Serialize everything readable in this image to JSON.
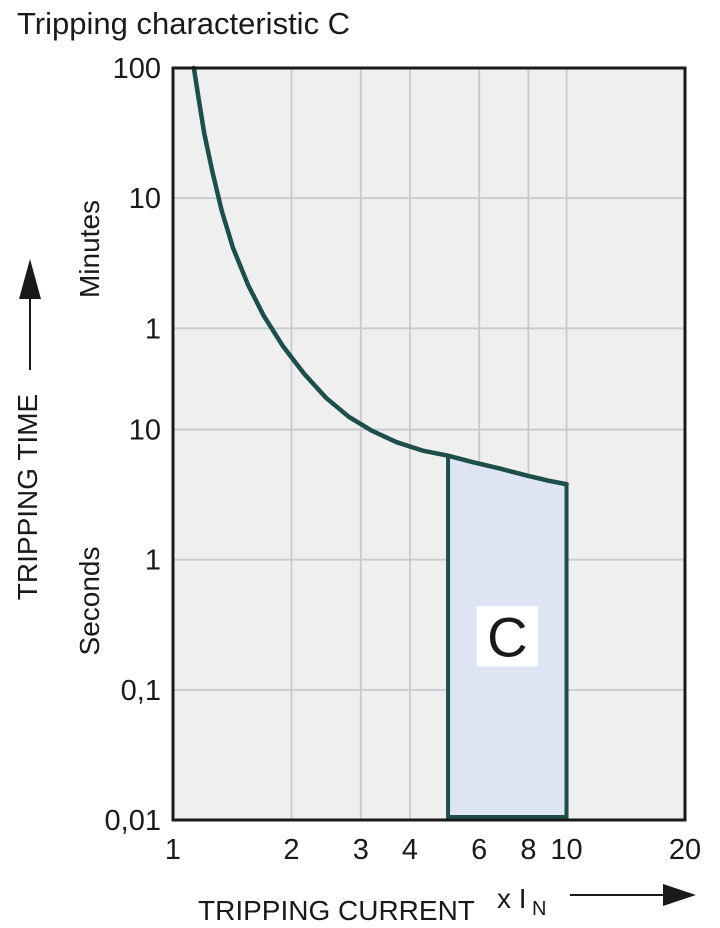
{
  "title": "Tripping characteristic C",
  "colors": {
    "background": "#ffffff",
    "plot_background": "#efefef",
    "gridline": "#c6c9ce",
    "frame": "#1a1a1a",
    "curve": "#1d4e4a",
    "region_fill": "#dde4f4",
    "region_label_box": "#ffffff",
    "text": "#1a1a1a"
  },
  "icons": {
    "y_axis_arrow": "up-arrow",
    "x_axis_arrow": "right-arrow"
  },
  "chart_data": {
    "type": "line",
    "title": "Tripping characteristic C",
    "grid": true,
    "x_axis": {
      "label": "TRIPPING CURRENT",
      "multiplier_label": "x I",
      "multiplier_subscript": "N",
      "scale": "log",
      "range": [
        1,
        20
      ],
      "ticks": [
        1,
        2,
        3,
        4,
        6,
        8,
        10,
        20
      ],
      "gridlines": [
        2,
        3,
        4,
        6,
        8,
        10
      ]
    },
    "y_axis": {
      "label": "TRIPPING TIME",
      "scale": "log",
      "range_seconds": [
        0.01,
        6000
      ],
      "unit_sections": [
        {
          "label": "Minutes",
          "ticks": [
            {
              "value_seconds": 6000,
              "label": "100"
            },
            {
              "value_seconds": 600,
              "label": "10"
            },
            {
              "value_seconds": 60,
              "label": "1"
            }
          ]
        },
        {
          "label": "Seconds",
          "ticks": [
            {
              "value_seconds": 10,
              "label": "10"
            },
            {
              "value_seconds": 1,
              "label": "1"
            },
            {
              "value_seconds": 0.1,
              "label": "0,1"
            },
            {
              "value_seconds": 0.01,
              "label": "0,01"
            }
          ]
        }
      ]
    },
    "series": [
      {
        "name": "thermal-trip-curve",
        "points": [
          [
            1.13,
            6000
          ],
          [
            1.16,
            3600
          ],
          [
            1.2,
            1900
          ],
          [
            1.26,
            950
          ],
          [
            1.33,
            480
          ],
          [
            1.42,
            250
          ],
          [
            1.55,
            130
          ],
          [
            1.7,
            75
          ],
          [
            1.9,
            44
          ],
          [
            2.15,
            27
          ],
          [
            2.45,
            17.5
          ],
          [
            2.8,
            12.5
          ],
          [
            3.2,
            9.8
          ],
          [
            3.7,
            8.0
          ],
          [
            4.3,
            6.9
          ],
          [
            5.0,
            6.3
          ],
          [
            5.8,
            5.6
          ],
          [
            6.8,
            5.0
          ],
          [
            8.0,
            4.4
          ],
          [
            9.0,
            4.05
          ],
          [
            10.0,
            3.8
          ]
        ]
      }
    ],
    "region": {
      "label": "C",
      "x_range": [
        5,
        10
      ],
      "y_bottom_seconds": 0.01
    }
  }
}
